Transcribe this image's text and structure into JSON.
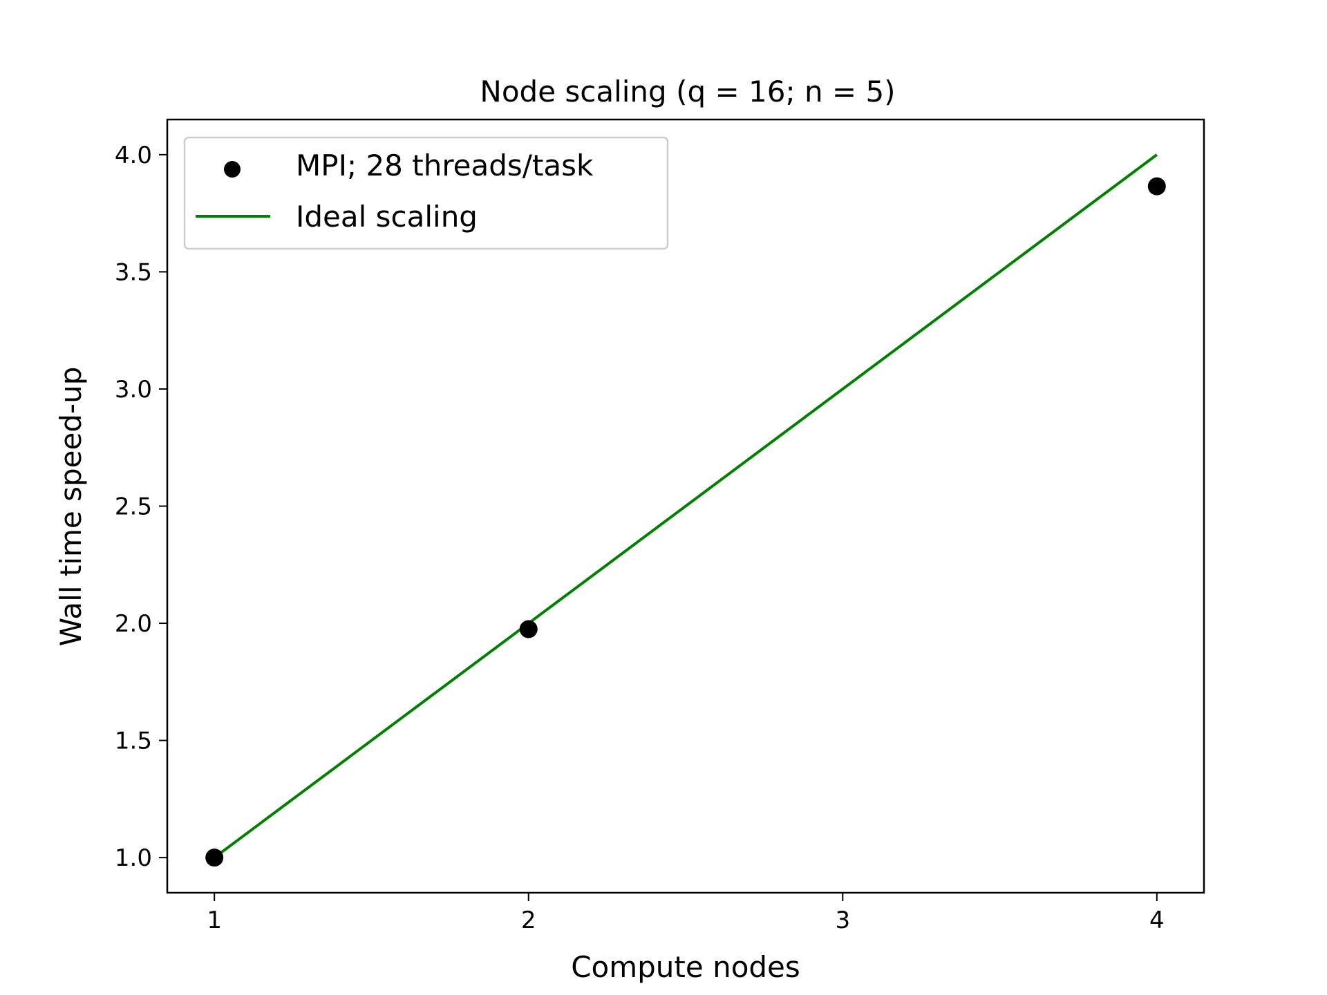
{
  "chart_data": {
    "type": "scatter",
    "title": "Node scaling (q = 16; n = 5)",
    "xlabel": "Compute nodes",
    "ylabel": "Wall time speed-up",
    "xlim": [
      0.85,
      4.15
    ],
    "ylim": [
      0.85,
      4.15
    ],
    "x_ticks": [
      1,
      2,
      3,
      4
    ],
    "x_tick_labels": [
      "1",
      "2",
      "3",
      "4"
    ],
    "y_ticks": [
      1.0,
      1.5,
      2.0,
      2.5,
      3.0,
      3.5,
      4.0
    ],
    "y_tick_labels": [
      "1.0",
      "1.5",
      "2.0",
      "2.5",
      "3.0",
      "3.5",
      "4.0"
    ],
    "grid": false,
    "legend_position": "top-left",
    "series": [
      {
        "name": "MPI; 28 threads/task",
        "kind": "scatter",
        "color": "#000000",
        "x": [
          1,
          2,
          4
        ],
        "y": [
          1.0,
          1.975,
          3.865
        ]
      },
      {
        "name": "Ideal scaling",
        "kind": "line",
        "color": "#008000",
        "x": [
          1,
          4
        ],
        "y": [
          1.0,
          4.0
        ]
      }
    ]
  }
}
